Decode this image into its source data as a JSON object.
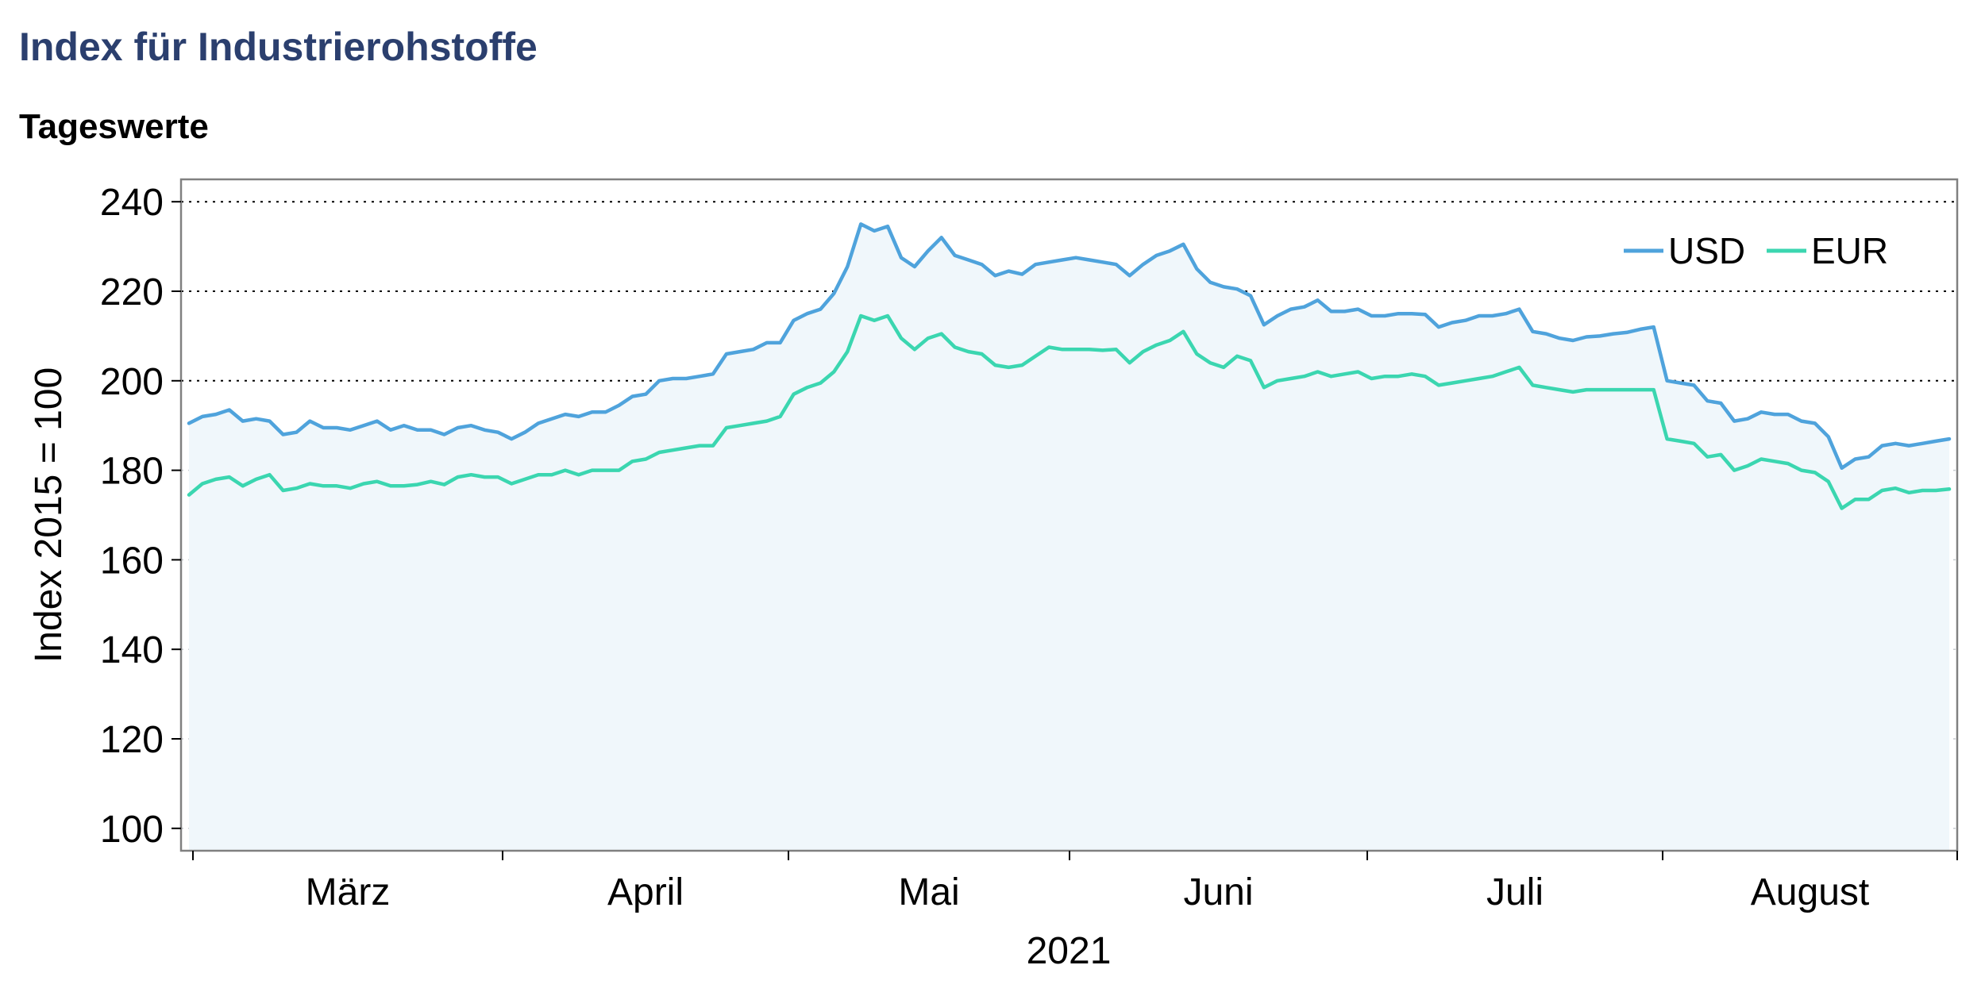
{
  "header": {
    "title": "Index für Industrierohstoffe",
    "subtitle": "Tageswerte"
  },
  "chart_data": {
    "type": "line",
    "title": "Index für Industrierohstoffe",
    "subtitle": "Tageswerte",
    "ylabel": "Index 2015 = 100",
    "xlabel": "2021",
    "ylim": [
      95,
      245
    ],
    "yticks": [
      100,
      120,
      140,
      160,
      180,
      200,
      220,
      240
    ],
    "month_labels": [
      "März",
      "April",
      "Mai",
      "Juni",
      "Juli",
      "August"
    ],
    "grid": true,
    "legend": "top-right",
    "fill_area": true,
    "colors": {
      "USD": "#4fa3dc",
      "EUR": "#3bd6b0",
      "fill": "#f0f7fb",
      "grid": "#000000"
    },
    "series": [
      {
        "name": "USD",
        "values": [
          190.5,
          192.0,
          192.5,
          193.5,
          191.0,
          191.5,
          191.0,
          188.0,
          188.5,
          191.0,
          189.5,
          189.5,
          189.0,
          190.0,
          191.0,
          189.0,
          190.0,
          189.0,
          189.0,
          188.0,
          189.5,
          190.0,
          189.0,
          188.5,
          187.0,
          188.5,
          190.5,
          191.5,
          192.5,
          192.0,
          193.0,
          193.0,
          194.5,
          196.5,
          197.0,
          200.0,
          200.5,
          200.5,
          201.0,
          201.5,
          206.0,
          206.5,
          207.0,
          208.5,
          208.5,
          213.5,
          215.0,
          216.0,
          219.5,
          225.5,
          235.0,
          233.5,
          234.5,
          227.5,
          225.5,
          229.0,
          232.0,
          228.0,
          227.0,
          226.0,
          223.5,
          224.5,
          223.8,
          226.0,
          226.5,
          227.0,
          227.5,
          227.0,
          226.5,
          226.0,
          223.5,
          226.0,
          228.0,
          229.0,
          230.5,
          225.0,
          222.0,
          221.0,
          220.5,
          219.0,
          212.5,
          214.5,
          216.0,
          216.5,
          218.0,
          215.5,
          215.5,
          216.0,
          214.5,
          214.5,
          215.0,
          215.0,
          214.8,
          212.0,
          213.0,
          213.5,
          214.5,
          214.5,
          215.0,
          216.0,
          211.0,
          210.5,
          209.5,
          209.0,
          209.8,
          210.0,
          210.5,
          210.8,
          211.5,
          212.0,
          200.0,
          199.5,
          199.0,
          195.5,
          195.0,
          191.0,
          191.5,
          193.0,
          192.5,
          192.5,
          191.0,
          190.5,
          187.5,
          180.5,
          182.5,
          183.0,
          185.5,
          186.0,
          185.5,
          186.0,
          186.5,
          187.0
        ]
      },
      {
        "name": "EUR",
        "values": [
          174.5,
          177.0,
          178.0,
          178.5,
          176.5,
          178.0,
          179.0,
          175.5,
          176.0,
          177.0,
          176.5,
          176.5,
          176.0,
          177.0,
          177.5,
          176.5,
          176.5,
          176.8,
          177.5,
          176.8,
          178.5,
          179.0,
          178.5,
          178.5,
          177.0,
          178.0,
          179.0,
          179.0,
          180.0,
          179.0,
          180.0,
          180.0,
          180.0,
          182.0,
          182.5,
          184.0,
          184.5,
          185.0,
          185.5,
          185.5,
          189.5,
          190.0,
          190.5,
          191.0,
          192.0,
          197.0,
          198.5,
          199.5,
          202.0,
          206.5,
          214.5,
          213.5,
          214.5,
          209.5,
          207.0,
          209.5,
          210.5,
          207.5,
          206.5,
          206.0,
          203.5,
          203.0,
          203.5,
          205.5,
          207.5,
          207.0,
          207.0,
          207.0,
          206.8,
          207.0,
          204.0,
          206.5,
          208.0,
          209.0,
          211.0,
          206.0,
          204.0,
          203.0,
          205.5,
          204.5,
          198.5,
          200.0,
          200.5,
          201.0,
          202.0,
          201.0,
          201.5,
          202.0,
          200.5,
          201.0,
          201.0,
          201.5,
          201.0,
          199.0,
          199.5,
          200.0,
          200.5,
          201.0,
          202.0,
          203.0,
          199.0,
          198.5,
          198.0,
          197.5,
          198.0,
          198.0,
          198.0,
          198.0,
          198.0,
          198.0,
          187.0,
          186.5,
          186.0,
          183.0,
          183.5,
          180.0,
          181.0,
          182.5,
          182.0,
          181.5,
          180.0,
          179.5,
          177.5,
          171.5,
          173.5,
          173.5,
          175.5,
          176.0,
          175.0,
          175.5,
          175.5,
          175.8
        ]
      }
    ]
  }
}
